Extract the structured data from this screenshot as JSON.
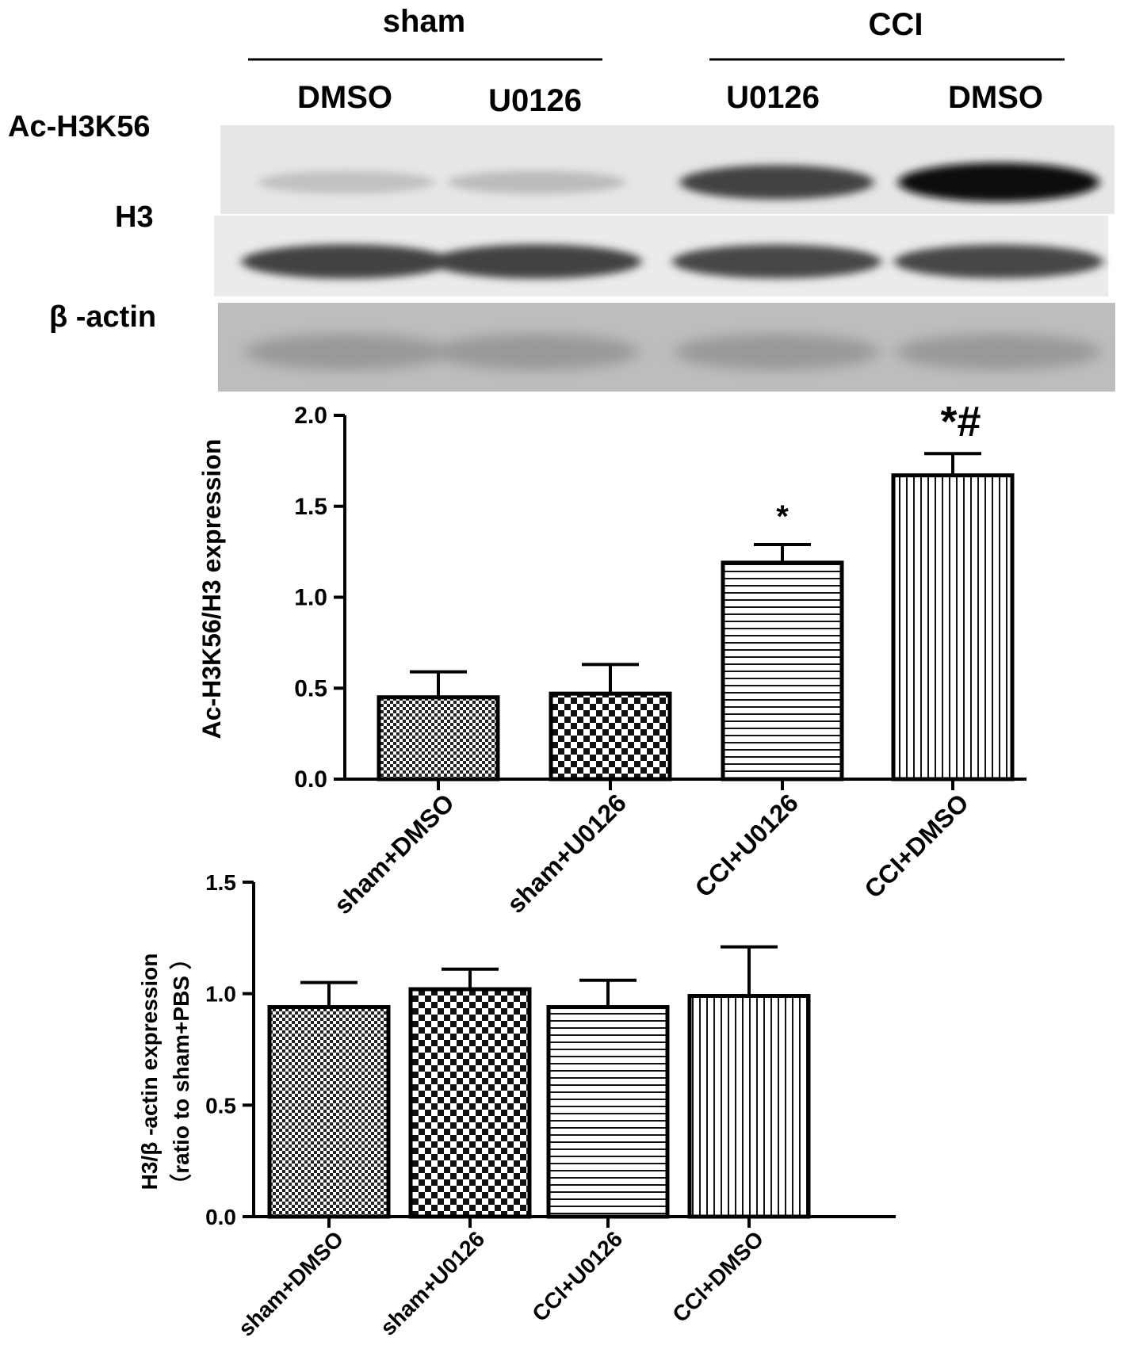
{
  "blot": {
    "groups": [
      {
        "label": "sham",
        "lanes": [
          "DMSO",
          "U0126"
        ]
      },
      {
        "label": "CCI",
        "lanes": [
          "U0126",
          "DMSO"
        ]
      }
    ],
    "rows": [
      "Ac-H3K56",
      "H3",
      "β -actin"
    ],
    "band_intensity": {
      "Ac-H3K56": [
        0.18,
        0.2,
        0.72,
        0.95
      ],
      "H3": [
        0.72,
        0.72,
        0.7,
        0.7
      ],
      "β -actin": [
        0.35,
        0.35,
        0.35,
        0.35
      ]
    }
  },
  "chart_data": [
    {
      "type": "bar",
      "categories": [
        "sham+DMSO",
        "sham+U0126",
        "CCI+U0126",
        "CCI+DMSO"
      ],
      "values": [
        0.45,
        0.47,
        1.19,
        1.67
      ],
      "errors": [
        0.14,
        0.16,
        0.1,
        0.12
      ],
      "annotations": [
        "",
        "",
        "*",
        "*#"
      ],
      "ylabel": "Ac-H3K56/H3 expression",
      "ylim": [
        0,
        2.0
      ],
      "yticks": [
        "0.0",
        "0.5",
        "1.0",
        "1.5",
        "2.0"
      ],
      "patterns": [
        "fine-checker",
        "checker",
        "horizontal-lines",
        "vertical-lines"
      ]
    },
    {
      "type": "bar",
      "categories": [
        "sham+DMSO",
        "sham+U0126",
        "CCI+U0126",
        "CCI+DMSO"
      ],
      "values": [
        0.94,
        1.02,
        0.94,
        0.99
      ],
      "errors": [
        0.11,
        0.09,
        0.12,
        0.22
      ],
      "annotations": [
        "",
        "",
        "",
        ""
      ],
      "ylabel": "H3/β -actin expression",
      "ylabel2": "（ratio to sham+PBS ）",
      "ylim": [
        0,
        1.5
      ],
      "yticks": [
        "0.0",
        "0.5",
        "1.0",
        "1.5"
      ],
      "patterns": [
        "fine-checker",
        "checker",
        "horizontal-lines",
        "vertical-lines"
      ]
    }
  ]
}
